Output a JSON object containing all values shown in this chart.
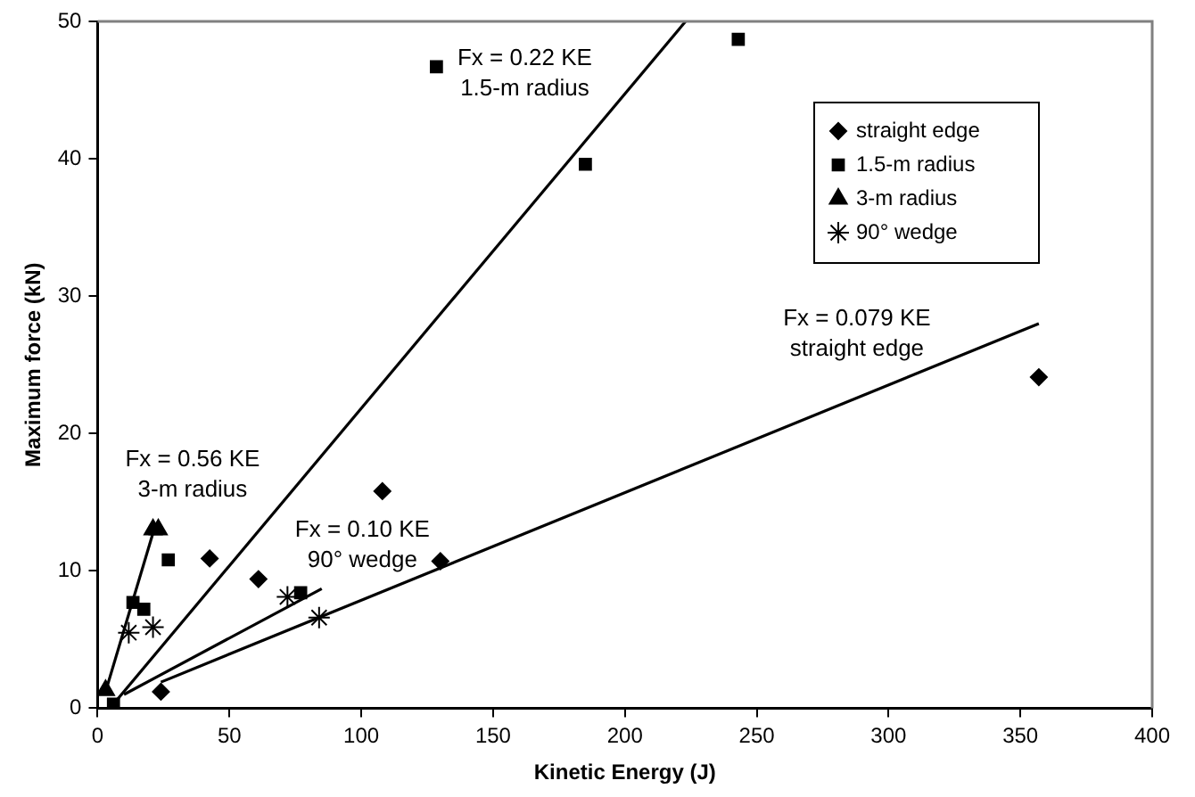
{
  "chart_data": {
    "type": "scatter",
    "xlabel": "Kinetic Energy (J)",
    "ylabel": "Maximum force (kN)",
    "xlim": [
      0,
      400
    ],
    "xticks": [
      0,
      50,
      100,
      150,
      200,
      250,
      300,
      350,
      400
    ],
    "ylim": [
      0,
      50
    ],
    "yticks": [
      0,
      10,
      20,
      30,
      40,
      50
    ],
    "legend": "top right",
    "series": [
      {
        "name": "straight edge",
        "type": "scatter",
        "marker": "diamond",
        "color": "#000000",
        "x": [
          24,
          42.5,
          61,
          108,
          130,
          357
        ],
        "values": [
          1.2,
          10.9,
          9.4,
          15.8,
          10.7,
          24.1
        ]
      },
      {
        "name": "1.5-m radius",
        "type": "scatter",
        "marker": "square",
        "color": "#000000",
        "x": [
          6,
          13.4,
          17.5,
          26.8,
          77,
          128.5,
          185,
          243
        ],
        "values": [
          0.3,
          7.7,
          7.2,
          10.8,
          8.4,
          46.7,
          39.6,
          48.7
        ]
      },
      {
        "name": "3-m radius",
        "type": "scatter",
        "marker": "triangle",
        "color": "#000000",
        "x": [
          3,
          21,
          23
        ],
        "values": [
          1.3,
          13,
          13
        ]
      },
      {
        "name": "90° wedge",
        "type": "scatter",
        "marker": "cross",
        "color": "#000000",
        "x": [
          11.8,
          21,
          72,
          84
        ],
        "values": [
          5.5,
          5.9,
          8.1,
          6.6
        ]
      },
      {
        "type": "line",
        "marker": "none",
        "color": "#000000",
        "x": [
          6,
          223
        ],
        "values": [
          0.3,
          50
        ]
      },
      {
        "type": "line",
        "marker": "none",
        "color": "#000000",
        "x": [
          3,
          22
        ],
        "values": [
          1.2,
          13.4
        ]
      },
      {
        "type": "line",
        "marker": "none",
        "color": "#000000",
        "x": [
          10,
          85
        ],
        "values": [
          1.0,
          8.7
        ]
      },
      {
        "type": "line",
        "marker": "none",
        "color": "#000000",
        "x": [
          24,
          357
        ],
        "values": [
          1.9,
          28.0
        ]
      }
    ],
    "annotations": [
      "Fx = 0.22 KE\n1.5-m radius",
      "Fx = 0.079 KE\nstraight edge",
      "Fx = 0.56 KE\n3-m radius",
      "Fx = 0.10 KE\n90° wedge"
    ]
  }
}
